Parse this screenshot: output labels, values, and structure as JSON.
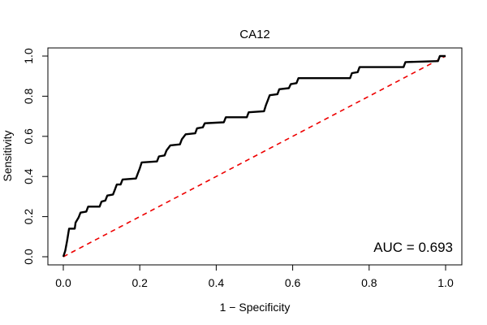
{
  "chart_data": {
    "type": "line",
    "title": "CA12",
    "xlabel": "1 − Specificity",
    "ylabel": "Sensitivity",
    "xlim": [
      0,
      1
    ],
    "ylim": [
      0,
      1
    ],
    "x_ticks": [
      "0.0",
      "0.2",
      "0.4",
      "0.6",
      "0.8",
      "1.0"
    ],
    "y_ticks": [
      "0.0",
      "0.2",
      "0.4",
      "0.6",
      "0.8",
      "1.0"
    ],
    "annotation": "AUC = 0.693",
    "annotation_position": "bottom-right",
    "series": [
      {
        "name": "ROC curve",
        "color": "#000000",
        "style": "solid",
        "points": [
          [
            0.0,
            0.0
          ],
          [
            0.005,
            0.03
          ],
          [
            0.01,
            0.08
          ],
          [
            0.015,
            0.14
          ],
          [
            0.03,
            0.14
          ],
          [
            0.032,
            0.17
          ],
          [
            0.04,
            0.195
          ],
          [
            0.045,
            0.22
          ],
          [
            0.06,
            0.225
          ],
          [
            0.065,
            0.25
          ],
          [
            0.095,
            0.25
          ],
          [
            0.1,
            0.275
          ],
          [
            0.11,
            0.28
          ],
          [
            0.115,
            0.305
          ],
          [
            0.13,
            0.31
          ],
          [
            0.135,
            0.335
          ],
          [
            0.14,
            0.36
          ],
          [
            0.15,
            0.36
          ],
          [
            0.155,
            0.385
          ],
          [
            0.19,
            0.39
          ],
          [
            0.195,
            0.415
          ],
          [
            0.2,
            0.44
          ],
          [
            0.205,
            0.47
          ],
          [
            0.245,
            0.475
          ],
          [
            0.25,
            0.5
          ],
          [
            0.265,
            0.505
          ],
          [
            0.27,
            0.53
          ],
          [
            0.28,
            0.555
          ],
          [
            0.305,
            0.56
          ],
          [
            0.31,
            0.585
          ],
          [
            0.32,
            0.61
          ],
          [
            0.345,
            0.615
          ],
          [
            0.35,
            0.64
          ],
          [
            0.365,
            0.645
          ],
          [
            0.37,
            0.665
          ],
          [
            0.42,
            0.67
          ],
          [
            0.425,
            0.695
          ],
          [
            0.48,
            0.695
          ],
          [
            0.485,
            0.72
          ],
          [
            0.525,
            0.725
          ],
          [
            0.53,
            0.755
          ],
          [
            0.535,
            0.78
          ],
          [
            0.54,
            0.805
          ],
          [
            0.56,
            0.81
          ],
          [
            0.565,
            0.835
          ],
          [
            0.59,
            0.84
          ],
          [
            0.595,
            0.86
          ],
          [
            0.61,
            0.865
          ],
          [
            0.615,
            0.89
          ],
          [
            0.75,
            0.89
          ],
          [
            0.755,
            0.915
          ],
          [
            0.77,
            0.92
          ],
          [
            0.775,
            0.945
          ],
          [
            0.89,
            0.945
          ],
          [
            0.895,
            0.97
          ],
          [
            0.98,
            0.975
          ],
          [
            0.985,
            1.0
          ],
          [
            1.0,
            1.0
          ]
        ]
      },
      {
        "name": "Reference diagonal",
        "color": "#ee0000",
        "style": "dashed",
        "points": [
          [
            0,
            0
          ],
          [
            1,
            1
          ]
        ]
      }
    ]
  }
}
